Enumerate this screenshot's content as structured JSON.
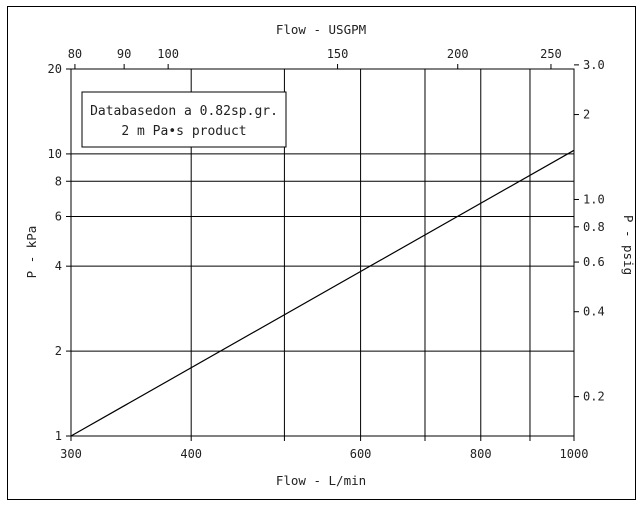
{
  "chart_data": {
    "type": "line",
    "title": "",
    "x_bottom": {
      "label": "Flow - L/min",
      "scale": "log",
      "range": [
        300,
        1000
      ],
      "ticks": [
        300,
        400,
        500,
        600,
        700,
        800,
        900,
        1000
      ],
      "tick_labels": {
        "300": "300",
        "400": "400",
        "600": "600",
        "800": "800",
        "1000": "1000"
      }
    },
    "x_top": {
      "label": "Flow - USGPM",
      "scale": "log",
      "ticks": [
        80,
        90,
        100,
        150,
        200,
        250
      ],
      "tick_labels": [
        "80",
        "90",
        "100",
        "150",
        "200",
        "250"
      ]
    },
    "y_left": {
      "label": "P - kPa",
      "scale": "log",
      "range": [
        1,
        20
      ],
      "ticks": [
        1,
        2,
        4,
        6,
        8,
        10,
        20
      ],
      "tick_labels": [
        "1",
        "2",
        "4",
        "6",
        "8",
        "10",
        "20"
      ]
    },
    "y_right": {
      "label": "P - psig",
      "scale": "log",
      "ticks": [
        0.2,
        0.4,
        0.6,
        0.8,
        1.0,
        2,
        3.0
      ],
      "tick_labels": [
        "0.2",
        "0.4",
        "0.6",
        "0.8",
        "1.0",
        "2",
        "3.0"
      ]
    },
    "grid": true,
    "series": [
      {
        "x": [
          300,
          1000
        ],
        "y": [
          1,
          10.3
        ]
      }
    ],
    "annotation": {
      "line1": "Databasedon a 0.82sp.gr.",
      "line2": "2 m Pa•s product"
    }
  }
}
